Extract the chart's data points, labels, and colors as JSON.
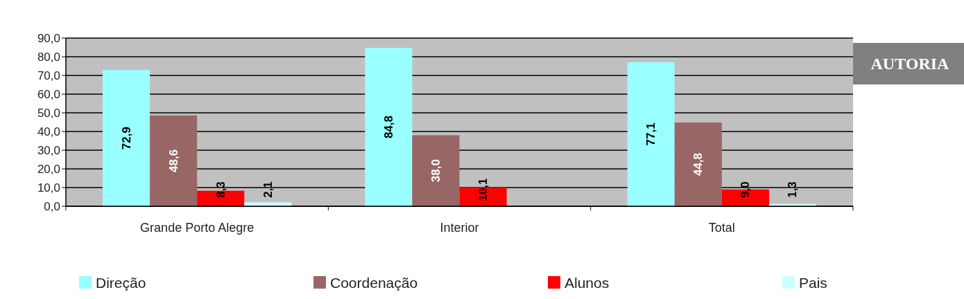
{
  "chart_data": {
    "type": "bar",
    "categories": [
      "Grande Porto Alegre",
      "Interior",
      "Total"
    ],
    "series": [
      {
        "name": "Direção",
        "color": "#99ffff",
        "values": [
          72.9,
          84.8,
          77.1
        ],
        "value_labels": [
          "72,9",
          "84,8",
          "77,1"
        ]
      },
      {
        "name": "Coordenação",
        "color": "#996666",
        "values": [
          48.6,
          38.0,
          44.8
        ],
        "value_labels": [
          "48,6",
          "38,0",
          "44,8"
        ]
      },
      {
        "name": "Alunos",
        "color": "#ff0000",
        "values": [
          8.3,
          10.1,
          9.0
        ],
        "value_labels": [
          "8,3",
          "10,1",
          "9,0"
        ]
      },
      {
        "name": "Pais",
        "color": "#ccffff",
        "values": [
          2.1,
          null,
          1.3
        ],
        "value_labels": [
          "2,1",
          null,
          "1,3"
        ]
      }
    ],
    "ylim": [
      0,
      90
    ],
    "yticks": [
      {
        "value": 0,
        "label": "0,0"
      },
      {
        "value": 10,
        "label": "10,0"
      },
      {
        "value": 20,
        "label": "20,0"
      },
      {
        "value": 30,
        "label": "30,0"
      },
      {
        "value": 40,
        "label": "40,0"
      },
      {
        "value": 50,
        "label": "50,0"
      },
      {
        "value": 60,
        "label": "60,0"
      },
      {
        "value": 70,
        "label": "70,0"
      },
      {
        "value": 80,
        "label": "80,0"
      },
      {
        "value": 90,
        "label": "90,0"
      }
    ],
    "grid": "y",
    "legend": "bottom",
    "annotations": [
      "AUTORIA"
    ]
  }
}
